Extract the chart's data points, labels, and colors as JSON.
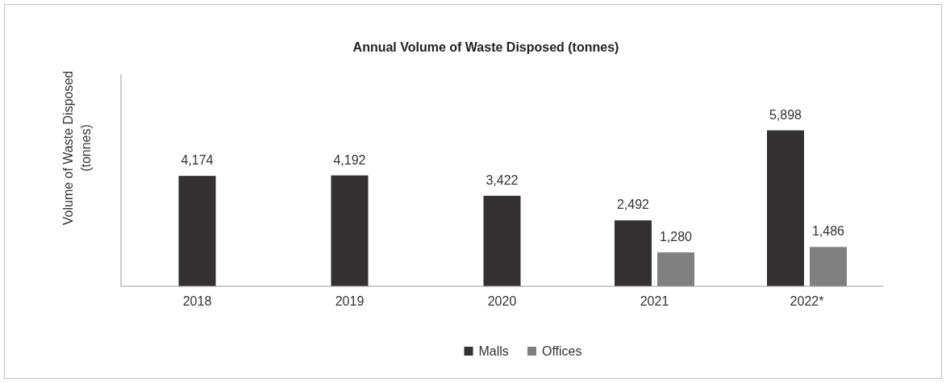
{
  "chart_data": {
    "type": "bar",
    "title": "Annual Volume of Waste Disposed (tonnes)",
    "ylabel": "Volume of Waste Disposed\n(tonnes)",
    "categories": [
      "2018",
      "2019",
      "2020",
      "2021",
      "2022*"
    ],
    "series": [
      {
        "name": "Malls",
        "color": "#333132",
        "values": [
          4174,
          4192,
          3422,
          2492,
          5898
        ],
        "value_labels": [
          "4,174",
          "4,192",
          "3,422",
          "2,492",
          "5,898"
        ]
      },
      {
        "name": "Offices",
        "color": "#808080",
        "values": [
          null,
          null,
          null,
          1280,
          1486
        ],
        "value_labels": [
          null,
          null,
          null,
          "1,280",
          "1,486"
        ]
      }
    ],
    "legend": "bottom"
  }
}
